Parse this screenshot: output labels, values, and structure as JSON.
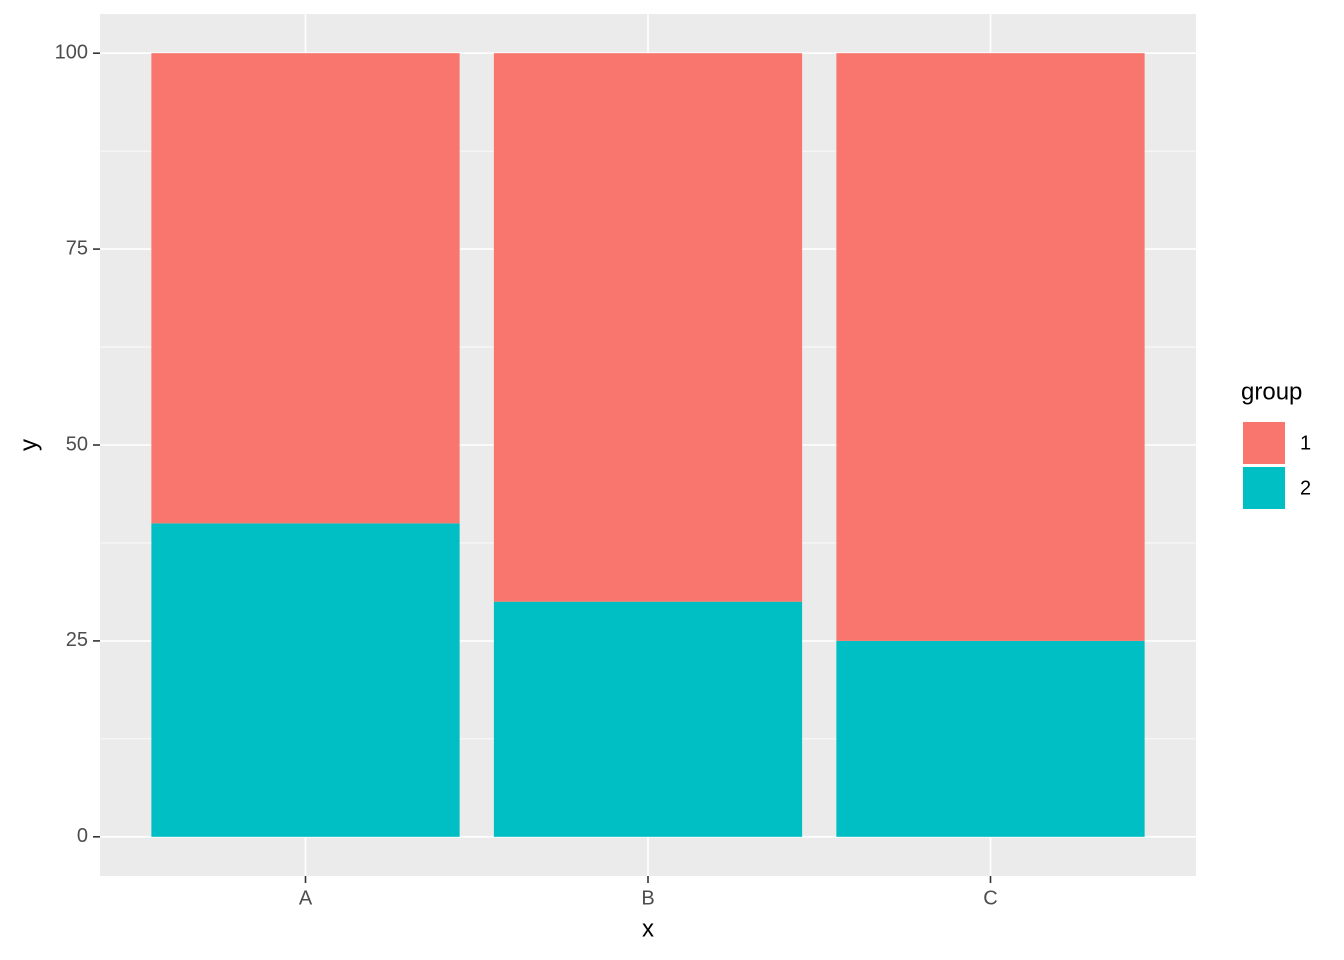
{
  "chart_data": {
    "type": "stacked_bar",
    "x_label": "x",
    "y_label": "y",
    "categories": [
      "A",
      "B",
      "C"
    ],
    "series": [
      {
        "name": "1",
        "color": "#F8766D",
        "values": [
          60,
          70,
          75
        ]
      },
      {
        "name": "2",
        "color": "#00BFC4",
        "values": [
          40,
          30,
          25
        ]
      }
    ],
    "ylim": [
      -5,
      105
    ],
    "yticks": [
      0,
      25,
      50,
      75,
      100
    ],
    "grid": true,
    "legend_title": "group",
    "legend_position": "right"
  }
}
